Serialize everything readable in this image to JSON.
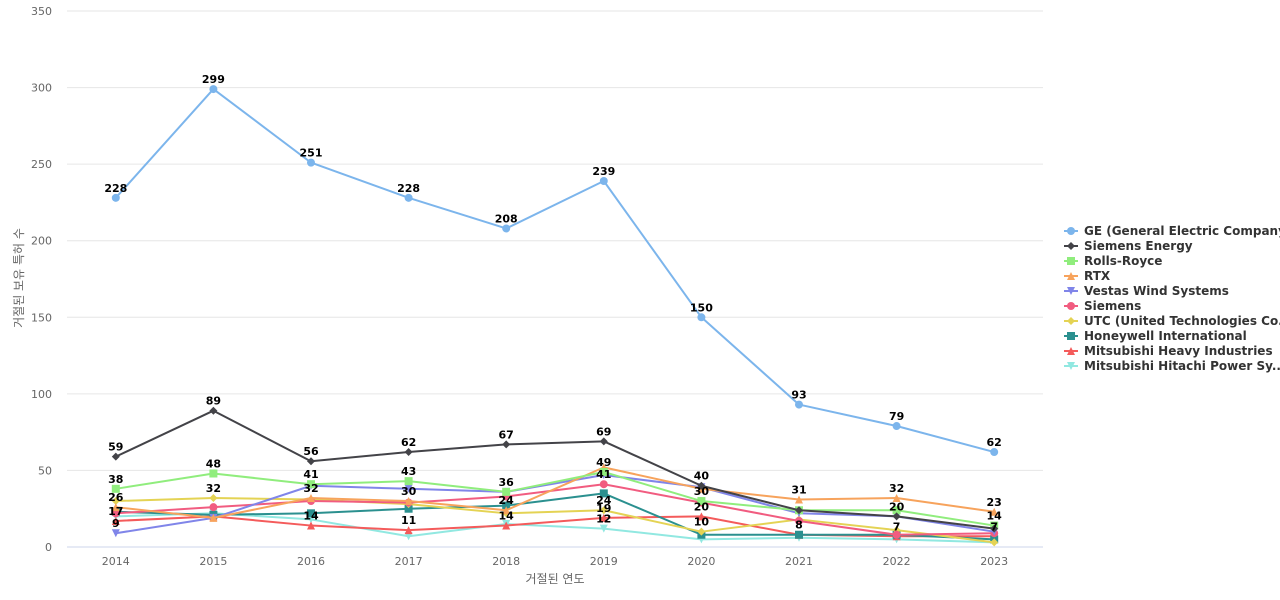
{
  "chart_data": {
    "type": "line",
    "xlabel": "거절된 연도",
    "ylabel": "거절된 보유 특허 수",
    "ylim": [
      0,
      350
    ],
    "yticks": [
      0,
      50,
      100,
      150,
      200,
      250,
      300,
      350
    ],
    "grid": true,
    "legend_position": "right",
    "categories": [
      "2014",
      "2015",
      "2016",
      "2017",
      "2018",
      "2019",
      "2020",
      "2021",
      "2022",
      "2023"
    ],
    "series": [
      {
        "name": "GE (General Electric Company)",
        "color": "#7cb5ec",
        "marker": "circle",
        "values": [
          228,
          299,
          251,
          228,
          208,
          239,
          150,
          93,
          79,
          62
        ],
        "labels": [
          true,
          true,
          true,
          true,
          true,
          true,
          true,
          true,
          true,
          true
        ]
      },
      {
        "name": "Siemens Energy",
        "color": "#434348",
        "marker": "diamond",
        "values": [
          59,
          89,
          56,
          62,
          67,
          69,
          40,
          24,
          20,
          12
        ],
        "labels": [
          true,
          true,
          true,
          true,
          true,
          true,
          true,
          false,
          false,
          false
        ]
      },
      {
        "name": "Rolls-Royce",
        "color": "#90ed7d",
        "marker": "square",
        "values": [
          38,
          48,
          41,
          43,
          36,
          49,
          30,
          24,
          24,
          14
        ],
        "labels": [
          true,
          true,
          true,
          true,
          true,
          true,
          true,
          false,
          false,
          true
        ]
      },
      {
        "name": "RTX",
        "color": "#f7a35c",
        "marker": "triangle",
        "values": [
          26,
          19,
          32,
          30,
          24,
          52,
          38,
          31,
          32,
          23
        ],
        "labels": [
          true,
          false,
          true,
          true,
          true,
          false,
          false,
          true,
          true,
          true
        ]
      },
      {
        "name": "Vestas Wind Systems",
        "color": "#8085e9",
        "marker": "triangle-down",
        "values": [
          9,
          19,
          40,
          38,
          36,
          47,
          39,
          22,
          20,
          10
        ],
        "labels": [
          true,
          false,
          false,
          false,
          false,
          false,
          false,
          false,
          true,
          false
        ]
      },
      {
        "name": "Siemens",
        "color": "#f15c80",
        "marker": "circle",
        "values": [
          22,
          26,
          30,
          29,
          33,
          41,
          29,
          17,
          8,
          9
        ],
        "labels": [
          false,
          false,
          false,
          false,
          false,
          true,
          false,
          false,
          false,
          false
        ]
      },
      {
        "name": "UTC (United Technologies Co...",
        "color": "#e4d354",
        "marker": "diamond",
        "values": [
          30,
          32,
          31,
          28,
          22,
          24,
          10,
          18,
          11,
          3
        ],
        "labels": [
          false,
          true,
          false,
          false,
          false,
          true,
          true,
          false,
          false,
          false
        ]
      },
      {
        "name": "Honeywell International",
        "color": "#2b908f",
        "marker": "square",
        "values": [
          23,
          21,
          22,
          25,
          27,
          35,
          8,
          8,
          8,
          5
        ],
        "labels": [
          false,
          false,
          false,
          false,
          false,
          false,
          false,
          false,
          false,
          false
        ]
      },
      {
        "name": "Mitsubishi Heavy Industries",
        "color": "#f45b5b",
        "marker": "triangle",
        "values": [
          17,
          20,
          14,
          11,
          14,
          19,
          20,
          8,
          7,
          7
        ],
        "labels": [
          true,
          false,
          true,
          true,
          true,
          true,
          true,
          true,
          true,
          true
        ]
      },
      {
        "name": "Mitsubishi Hitachi Power Sy...",
        "color": "#91e8e1",
        "marker": "triangle-down",
        "values": [
          20,
          22,
          18,
          7,
          15,
          12,
          5,
          6,
          5,
          3
        ],
        "labels": [
          false,
          false,
          false,
          false,
          false,
          true,
          false,
          false,
          false,
          false
        ]
      }
    ]
  }
}
